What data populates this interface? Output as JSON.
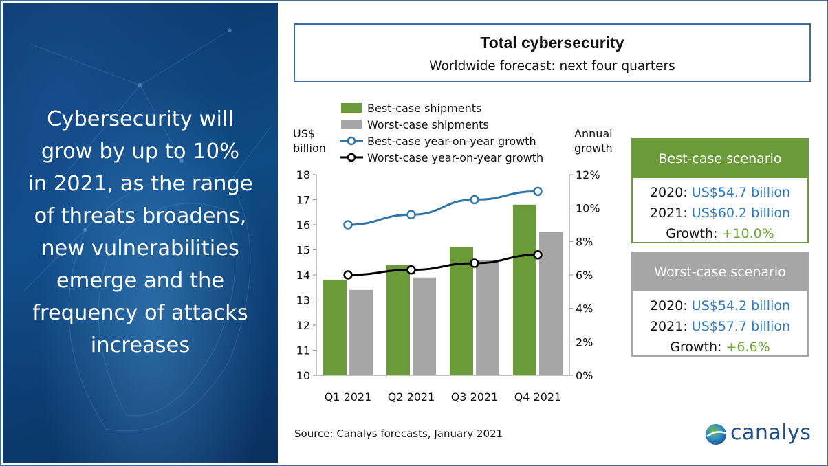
{
  "left": {
    "lines": [
      "Cybersecurity will",
      "grow by up to 10%",
      "in 2021, as the range",
      "of threats broadens,",
      "new vulnerabilities",
      "emerge and the",
      "frequency of attacks",
      "increases"
    ]
  },
  "header": {
    "title": "Total cybersecurity",
    "subtitle": "Worldwide forecast: next four quarters"
  },
  "chart_data": {
    "type": "bar",
    "categories": [
      "Q1 2021",
      "Q2 2021",
      "Q3 2021",
      "Q4 2021"
    ],
    "ylabel_left": [
      "US$",
      "billion"
    ],
    "ylabel_right": [
      "Annual",
      "growth"
    ],
    "ylim": [
      10,
      18
    ],
    "yticks": [
      "10",
      "11",
      "12",
      "13",
      "14",
      "15",
      "16",
      "17",
      "18"
    ],
    "y2lim": [
      0,
      12
    ],
    "y2ticks": [
      "0%",
      "2%",
      "4%",
      "6%",
      "8%",
      "10%",
      "12%"
    ],
    "series": [
      {
        "name": "Best-case shipments",
        "kind": "bar",
        "axis": "left",
        "color": "#6a9a3a",
        "values": [
          13.8,
          14.4,
          15.1,
          16.8
        ]
      },
      {
        "name": "Worst-case shipments",
        "kind": "bar",
        "axis": "left",
        "color": "#a6a6a6",
        "values": [
          13.4,
          13.9,
          14.6,
          15.7
        ]
      },
      {
        "name": "Best-case year-on-year growth",
        "kind": "line",
        "axis": "right",
        "color": "#2e75a8",
        "values": [
          9.0,
          9.6,
          10.5,
          11.0
        ]
      },
      {
        "name": "Worst-case year-on-year growth",
        "kind": "line",
        "axis": "right",
        "color": "#000000",
        "values": [
          6.0,
          6.3,
          6.7,
          7.2
        ]
      }
    ],
    "legend_position": "top",
    "grid": false
  },
  "best": {
    "header": "Best-case scenario",
    "rows": [
      {
        "label": "2020:",
        "value": "US$54.7 billion"
      },
      {
        "label": "2021:",
        "value": "US$60.2 billion"
      },
      {
        "label": "Growth:",
        "value": "+10.0%"
      }
    ]
  },
  "worst": {
    "header": "Worst-case scenario",
    "rows": [
      {
        "label": "2020:",
        "value": "US$54.2 billion"
      },
      {
        "label": "2021:",
        "value": "US$57.7 billion"
      },
      {
        "label": "Growth:",
        "value": "+6.6%"
      }
    ]
  },
  "footer": {
    "source": "Source: Canalys forecasts, January 2021",
    "logo_text": "canalys"
  },
  "colors": {
    "accent_blue": "#2e7bc1",
    "growth_green": "#6ea632",
    "border_blue": "#3a6ea5"
  }
}
